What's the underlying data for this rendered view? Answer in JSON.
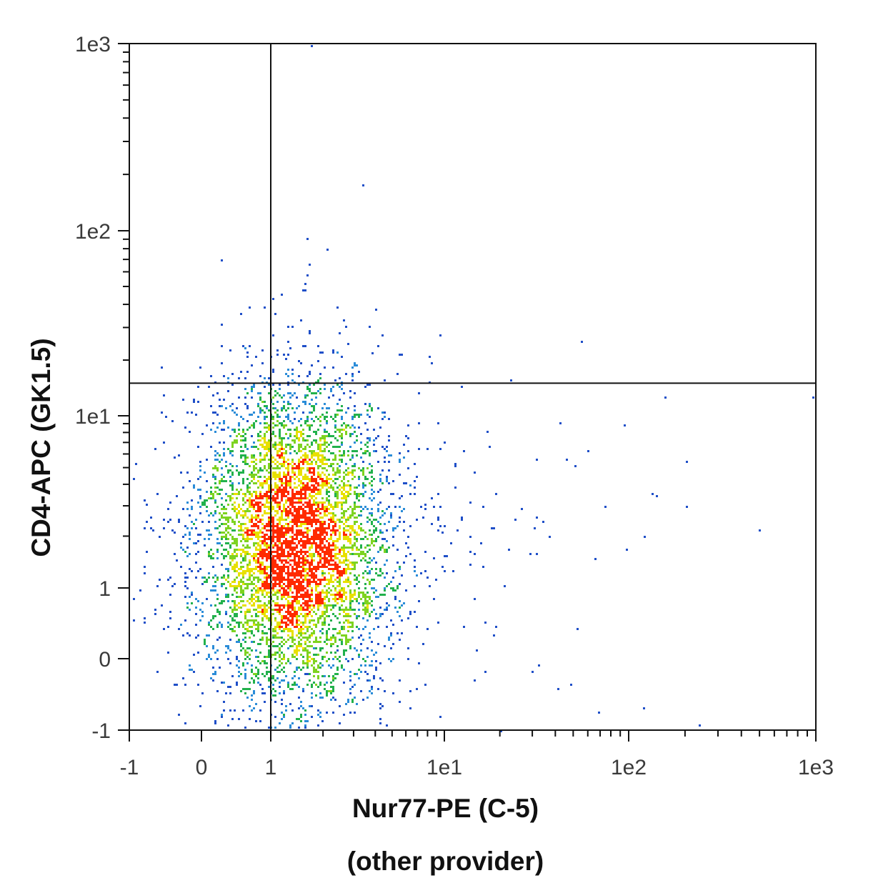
{
  "chart_data": {
    "type": "scatter",
    "subtype": "flow-cytometry-density-dot-plot",
    "xlabel": "Nur77-PE (C-5)",
    "xlabel_sub": "(other provider)",
    "ylabel": "CD4-APC (GK1.5)",
    "x_scale": "biexponential",
    "y_scale": "biexponential",
    "xlim": [
      -1,
      1000
    ],
    "ylim": [
      -1,
      1000
    ],
    "x_ticks": [
      {
        "value": -1,
        "label": "-1"
      },
      {
        "value": 0,
        "label": "0"
      },
      {
        "value": 1,
        "label": "1"
      },
      {
        "value": 10,
        "label": "1e1"
      },
      {
        "value": 100,
        "label": "1e2"
      },
      {
        "value": 1000,
        "label": "1e3"
      }
    ],
    "y_ticks": [
      {
        "value": -1,
        "label": "-1"
      },
      {
        "value": 0,
        "label": "0"
      },
      {
        "value": 1,
        "label": "1"
      },
      {
        "value": 10,
        "label": "1e1"
      },
      {
        "value": 100,
        "label": "1e2"
      },
      {
        "value": 1000,
        "label": "1e3"
      }
    ],
    "quadrant_gate": {
      "x": 1,
      "y": 15
    },
    "grid": false,
    "legend": "none",
    "density_colors": [
      "#1f4fc8",
      "#2a8cd8",
      "#22b14c",
      "#7ed321",
      "#e8e000",
      "#ff2a00"
    ],
    "population": {
      "center_x": 1.2,
      "center_y": 1.8,
      "approx_events": 9000,
      "note_outliers": [
        {
          "x": 2.1,
          "y": 80
        },
        {
          "x": 1.7,
          "y": 980
        },
        {
          "x": 3.8,
          "y": 22
        },
        {
          "x": 20,
          "y": -1
        },
        {
          "x": 120,
          "y": 2
        },
        {
          "x": 65,
          "y": 1.5
        },
        {
          "x": 48,
          "y": -0.35
        }
      ]
    }
  }
}
